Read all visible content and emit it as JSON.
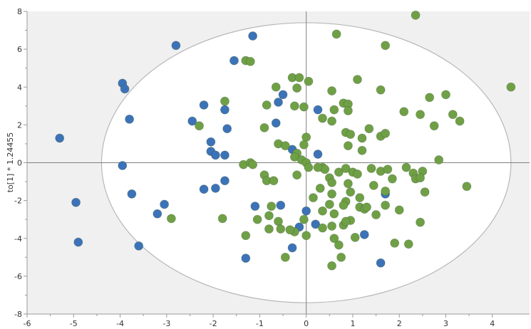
{
  "chart_data": {
    "type": "scatter",
    "title": "",
    "xlabel": "",
    "ylabel": "to[1] * 1.24455",
    "xlim": [
      -6,
      4.8
    ],
    "ylim": [
      -8,
      8
    ],
    "x_ticks": [
      "-6",
      "-5",
      "-4",
      "-3",
      "-2",
      "-1",
      "0",
      "1",
      "2",
      "3",
      "4"
    ],
    "y_ticks": [
      "-8",
      "-6",
      "-4",
      "-2",
      "0",
      "2",
      "4",
      "6",
      "8"
    ],
    "grid": false,
    "legend": "none",
    "ellipse": {
      "center": [
        0,
        0
      ],
      "rx": 4.4,
      "ry": 7.4
    },
    "colors": {
      "plot_background": "#f0f0f0",
      "ellipse_fill": "#ffffff",
      "ellipse_stroke": "#b8b8b8",
      "axis": "#7f7f7f"
    },
    "series": [
      {
        "color": "#3c73b8",
        "points": [
          [
            -5.3,
            1.3
          ],
          [
            -4.95,
            -2.1
          ],
          [
            -4.9,
            -4.2
          ],
          [
            -3.95,
            4.2
          ],
          [
            -3.9,
            3.9
          ],
          [
            -3.8,
            2.3
          ],
          [
            -3.95,
            -0.15
          ],
          [
            -3.75,
            -1.65
          ],
          [
            -3.6,
            -4.4
          ],
          [
            -3.2,
            -2.7
          ],
          [
            -3.05,
            -2.2
          ],
          [
            -2.8,
            6.2
          ],
          [
            -2.45,
            2.2
          ],
          [
            -2.2,
            3.05
          ],
          [
            -2.2,
            -1.4
          ],
          [
            -2.05,
            1.1
          ],
          [
            -2.05,
            0.6
          ],
          [
            -1.95,
            0.4
          ],
          [
            -1.95,
            -1.35
          ],
          [
            -1.75,
            2.8
          ],
          [
            -1.7,
            1.8
          ],
          [
            -1.75,
            0.4
          ],
          [
            -1.75,
            -0.95
          ],
          [
            -1.55,
            5.4
          ],
          [
            -1.15,
            6.7
          ],
          [
            -1.1,
            -2.3
          ],
          [
            -1.3,
            -5.05
          ],
          [
            -0.65,
            2.1
          ],
          [
            -0.6,
            3.2
          ],
          [
            -0.5,
            3.6
          ],
          [
            -0.55,
            -2.25
          ],
          [
            -0.3,
            0.7
          ],
          [
            -0.3,
            -4.5
          ],
          [
            -0.15,
            -3.4
          ],
          [
            0,
            -2.55
          ],
          [
            0.2,
            -3.25
          ],
          [
            0.25,
            2.8
          ],
          [
            0.25,
            0.45
          ],
          [
            1.25,
            -3.8
          ],
          [
            1.7,
            -1.65
          ],
          [
            1.6,
            -5.3
          ]
        ]
      },
      {
        "color": "#70a046",
        "points": [
          [
            0.65,
            6.8
          ],
          [
            2.35,
            7.8
          ],
          [
            1.7,
            6.2
          ],
          [
            4.4,
            4.0
          ],
          [
            -1.3,
            5.4
          ],
          [
            -1.2,
            5.35
          ],
          [
            -0.3,
            4.5
          ],
          [
            -0.15,
            4.5
          ],
          [
            0.05,
            4.3
          ],
          [
            1.1,
            4.4
          ],
          [
            -0.65,
            4.0
          ],
          [
            -0.2,
            3.95
          ],
          [
            0.55,
            3.8
          ],
          [
            1.6,
            3.85
          ],
          [
            2.65,
            3.45
          ],
          [
            3.0,
            3.6
          ],
          [
            -1.75,
            3.25
          ],
          [
            -0.85,
            3.05
          ],
          [
            -0.25,
            3.0
          ],
          [
            -0.05,
            2.95
          ],
          [
            0.8,
            3.15
          ],
          [
            0.9,
            3.1
          ],
          [
            0.6,
            2.8
          ],
          [
            0.9,
            2.75
          ],
          [
            2.1,
            2.7
          ],
          [
            2.45,
            2.55
          ],
          [
            3.15,
            2.55
          ],
          [
            3.3,
            2.2
          ],
          [
            -0.9,
            1.85
          ],
          [
            0.35,
            2.35
          ],
          [
            0.55,
            2.2
          ],
          [
            1.35,
            1.8
          ],
          [
            1.6,
            1.4
          ],
          [
            1.7,
            1.55
          ],
          [
            2.75,
            1.95
          ],
          [
            -2.3,
            1.95
          ],
          [
            0.85,
            1.6
          ],
          [
            0.95,
            1.5
          ],
          [
            1.2,
            1.3
          ],
          [
            0.0,
            1.35
          ],
          [
            -0.6,
            1.0
          ],
          [
            -0.45,
            0.9
          ],
          [
            -0.2,
            0.5
          ],
          [
            -0.05,
            0.95
          ],
          [
            0.9,
            0.9
          ],
          [
            1.2,
            0.65
          ],
          [
            2.85,
            0.15
          ],
          [
            -1.35,
            -0.1
          ],
          [
            -1.2,
            0.0
          ],
          [
            -1.15,
            -0.1
          ],
          [
            -0.25,
            0.3
          ],
          [
            -0.1,
            0.15
          ],
          [
            0.0,
            0.0
          ],
          [
            0.35,
            -0.25
          ],
          [
            0.4,
            -0.35
          ],
          [
            0.7,
            -0.5
          ],
          [
            0.85,
            -0.3
          ],
          [
            1.0,
            -0.5
          ],
          [
            1.1,
            -0.6
          ],
          [
            1.4,
            -0.3
          ],
          [
            1.6,
            -0.45
          ],
          [
            1.75,
            -0.35
          ],
          [
            2.15,
            -0.25
          ],
          [
            2.3,
            -0.55
          ],
          [
            2.5,
            -0.45
          ],
          [
            -0.9,
            -0.65
          ],
          [
            -0.85,
            -0.95
          ],
          [
            -0.7,
            -0.95
          ],
          [
            -0.2,
            -0.65
          ],
          [
            0.05,
            -0.25
          ],
          [
            0.25,
            -0.25
          ],
          [
            0.5,
            -0.8
          ],
          [
            0.55,
            -1.05
          ],
          [
            0.9,
            -1.1
          ],
          [
            0.95,
            -1.55
          ],
          [
            1.45,
            -1.2
          ],
          [
            1.7,
            -1.5
          ],
          [
            1.85,
            -0.85
          ],
          [
            2.35,
            -0.85
          ],
          [
            2.45,
            -0.8
          ],
          [
            2.55,
            -1.55
          ],
          [
            3.45,
            -1.25
          ],
          [
            0.15,
            -1.85
          ],
          [
            0.3,
            -1.35
          ],
          [
            0.5,
            -2.2
          ],
          [
            0.55,
            -1.65
          ],
          [
            0.85,
            -2.05
          ],
          [
            1.15,
            -1.85
          ],
          [
            1.15,
            -2.35
          ],
          [
            1.25,
            -2.45
          ],
          [
            1.7,
            -2.25
          ],
          [
            -0.75,
            -2.3
          ],
          [
            -0.8,
            -2.8
          ],
          [
            -1.8,
            -2.95
          ],
          [
            -2.9,
            -2.95
          ],
          [
            -1.05,
            -3.0
          ],
          [
            -0.6,
            -3.1
          ],
          [
            -0.8,
            -3.5
          ],
          [
            -0.55,
            -3.5
          ],
          [
            -0.25,
            -3.65
          ],
          [
            -0.05,
            -3.0
          ],
          [
            0.35,
            -2.55
          ],
          [
            0.6,
            -2.7
          ],
          [
            0.8,
            -2.25
          ],
          [
            1.3,
            -2.35
          ],
          [
            1.5,
            -2.75
          ],
          [
            2.0,
            -2.5
          ],
          [
            2.45,
            -3.15
          ],
          [
            0.35,
            -3.45
          ],
          [
            0.55,
            -3.35
          ],
          [
            0.8,
            -3.3
          ],
          [
            0.95,
            -3.05
          ],
          [
            0.85,
            -3.1
          ],
          [
            -1.3,
            -3.85
          ],
          [
            -0.35,
            -3.55
          ],
          [
            0.0,
            -3.85
          ],
          [
            0.6,
            -4.0
          ],
          [
            0.7,
            -4.35
          ],
          [
            1.05,
            -3.95
          ],
          [
            1.9,
            -4.25
          ],
          [
            2.2,
            -4.3
          ],
          [
            -0.45,
            -5.0
          ],
          [
            0.55,
            -5.45
          ],
          [
            0.75,
            -5.0
          ]
        ]
      }
    ]
  }
}
